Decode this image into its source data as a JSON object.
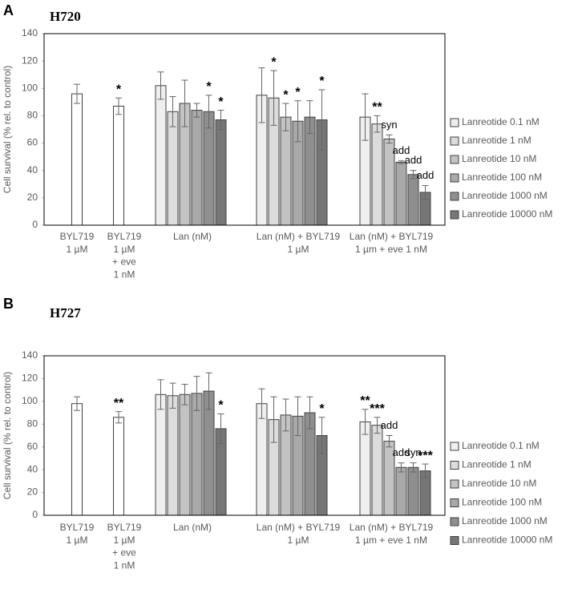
{
  "chart_data": [
    {
      "type": "bar",
      "panel": "A",
      "title": "H720",
      "ylabel": "Cell survival (% rel. to control)",
      "ylim": [
        0,
        140
      ],
      "yticks": [
        0,
        20,
        40,
        60,
        80,
        100,
        120,
        140
      ],
      "categories": [
        [
          "BYL719",
          "1 µM"
        ],
        [
          "BYL719",
          "1 µM",
          "+ eve",
          "1 nM"
        ],
        [
          "Lan (nM)"
        ],
        [
          "Lan (nM) + BYL719",
          "1 µM"
        ],
        [
          "Lan (nM) + BYL719",
          "1 µm + eve 1 nM"
        ]
      ],
      "series": [
        {
          "color": "#ffffff",
          "values": [
            96,
            87,
            null,
            null,
            null
          ],
          "errors": [
            7,
            6,
            null,
            null,
            null
          ],
          "annotations": [
            null,
            "*",
            null,
            null,
            null
          ]
        },
        {
          "name": "Lanreotide 0.1 nM",
          "color": "#efefef",
          "values": [
            null,
            null,
            102,
            95,
            79
          ],
          "errors": [
            null,
            null,
            10,
            20,
            17
          ],
          "annotations": [
            null,
            null,
            null,
            null,
            null
          ]
        },
        {
          "name": "Lanreotide 1 nM",
          "color": "#dcdcdc",
          "values": [
            null,
            null,
            83,
            93,
            74
          ],
          "errors": [
            null,
            null,
            11,
            20,
            6
          ],
          "annotations": [
            null,
            null,
            null,
            "*",
            "**"
          ]
        },
        {
          "name": "Lanreotide 10 nM",
          "color": "#c3c3c3",
          "values": [
            null,
            null,
            89,
            79,
            63
          ],
          "errors": [
            null,
            null,
            17,
            10,
            3
          ],
          "annotations": [
            null,
            null,
            null,
            "*",
            "syn"
          ]
        },
        {
          "name": "Lanreotide 100 nM",
          "color": "#a9a9a9",
          "values": [
            null,
            null,
            84,
            76,
            46
          ],
          "errors": [
            null,
            null,
            5,
            15,
            1
          ],
          "annotations": [
            null,
            null,
            null,
            "*",
            "add"
          ]
        },
        {
          "name": "Lanreotide 1000 nM",
          "color": "#8f8f8f",
          "values": [
            null,
            null,
            83,
            79,
            37
          ],
          "errors": [
            null,
            null,
            12,
            12,
            3
          ],
          "annotations": [
            null,
            null,
            "*",
            null,
            "add"
          ]
        },
        {
          "name": "Lanreotide 10000 nM",
          "color": "#767676",
          "values": [
            null,
            null,
            77,
            77,
            24
          ],
          "errors": [
            null,
            null,
            7,
            22,
            5
          ],
          "annotations": [
            null,
            null,
            "*",
            "*",
            "add"
          ]
        }
      ]
    },
    {
      "type": "bar",
      "panel": "B",
      "title": "H727",
      "ylabel": "Cell survival (% rel. to control)",
      "ylim": [
        0,
        140
      ],
      "yticks": [
        0,
        20,
        40,
        60,
        80,
        100,
        120,
        140
      ],
      "categories": [
        [
          "BYL719",
          "1 µM"
        ],
        [
          "BYL719",
          "1 µM",
          "+ eve",
          "1 nM"
        ],
        [
          "Lan (nM)"
        ],
        [
          "Lan (nM) + BYL719",
          "1 µM"
        ],
        [
          "Lan (nM) + BYL719",
          "1 µm + eve 1 nM"
        ]
      ],
      "series": [
        {
          "color": "#ffffff",
          "values": [
            98,
            86,
            null,
            null,
            null
          ],
          "errors": [
            6,
            5,
            null,
            null,
            null
          ],
          "annotations": [
            null,
            "**",
            null,
            null,
            null
          ]
        },
        {
          "name": "Lanreotide 0.1 nM",
          "color": "#efefef",
          "values": [
            null,
            null,
            106,
            98,
            82
          ],
          "errors": [
            null,
            null,
            13,
            13,
            11
          ],
          "annotations": [
            null,
            null,
            null,
            null,
            "**"
          ]
        },
        {
          "name": "Lanreotide 1 nM",
          "color": "#dcdcdc",
          "values": [
            null,
            null,
            105,
            84,
            79
          ],
          "errors": [
            null,
            null,
            11,
            20,
            7
          ],
          "annotations": [
            null,
            null,
            null,
            null,
            "***"
          ]
        },
        {
          "name": "Lanreotide 10 nM",
          "color": "#c3c3c3",
          "values": [
            null,
            null,
            106,
            88,
            65
          ],
          "errors": [
            null,
            null,
            9,
            14,
            5
          ],
          "annotations": [
            null,
            null,
            null,
            null,
            "add"
          ]
        },
        {
          "name": "Lanreotide 100 nM",
          "color": "#a9a9a9",
          "values": [
            null,
            null,
            107,
            87,
            42
          ],
          "errors": [
            null,
            null,
            15,
            17,
            4
          ],
          "annotations": [
            null,
            null,
            null,
            null,
            "add"
          ]
        },
        {
          "name": "Lanreotide 1000 nM",
          "color": "#8f8f8f",
          "values": [
            null,
            null,
            109,
            90,
            42
          ],
          "errors": [
            null,
            null,
            16,
            14,
            4
          ],
          "annotations": [
            null,
            null,
            null,
            null,
            "syn"
          ]
        },
        {
          "name": "Lanreotide 10000 nM",
          "color": "#767676",
          "values": [
            null,
            null,
            76,
            70,
            39
          ],
          "errors": [
            null,
            null,
            13,
            16,
            6
          ],
          "annotations": [
            null,
            null,
            "*",
            "*",
            "***"
          ]
        }
      ]
    }
  ]
}
